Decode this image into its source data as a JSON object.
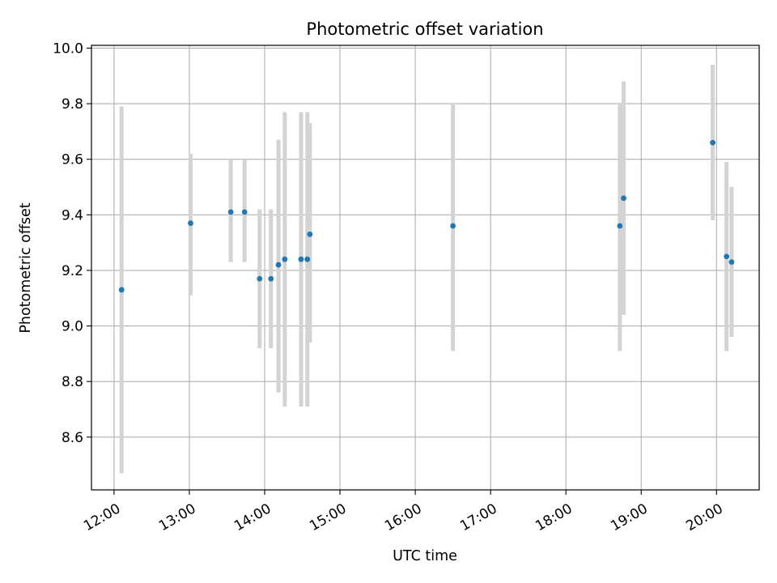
{
  "chart_data": {
    "type": "scatter",
    "title": "Photometric offset variation",
    "xlabel": "UTC time",
    "ylabel": "Photometric offset",
    "x_unit": "hours UTC",
    "xlim": [
      "11:42",
      "20:34"
    ],
    "ylim": [
      8.41,
      10.01
    ],
    "x_ticks": [
      {
        "value": "12:00",
        "label": "12:00"
      },
      {
        "value": "13:00",
        "label": "13:00"
      },
      {
        "value": "14:00",
        "label": "14:00"
      },
      {
        "value": "15:00",
        "label": "15:00"
      },
      {
        "value": "16:00",
        "label": "16:00"
      },
      {
        "value": "17:00",
        "label": "17:00"
      },
      {
        "value": "18:00",
        "label": "18:00"
      },
      {
        "value": "19:00",
        "label": "19:00"
      },
      {
        "value": "20:00",
        "label": "20:00"
      }
    ],
    "y_ticks": [
      {
        "value": 8.6,
        "label": "8.6"
      },
      {
        "value": 8.8,
        "label": "8.8"
      },
      {
        "value": 9.0,
        "label": "9.0"
      },
      {
        "value": 9.2,
        "label": "9.2"
      },
      {
        "value": 9.4,
        "label": "9.4"
      },
      {
        "value": 9.6,
        "label": "9.6"
      },
      {
        "value": 9.8,
        "label": "9.8"
      },
      {
        "value": 10.0,
        "label": "10.0"
      }
    ],
    "grid": true,
    "colors": {
      "marker": "#1f77b4",
      "errorbar": "#d3d3d3",
      "grid": "#b0b0b0"
    },
    "points": [
      {
        "time": "12:06",
        "y": 9.13,
        "y_low": 8.47,
        "y_high": 9.79
      },
      {
        "time": "13:01",
        "y": 9.37,
        "y_low": 9.11,
        "y_high": 9.62
      },
      {
        "time": "13:33",
        "y": 9.41,
        "y_low": 9.23,
        "y_high": 9.6
      },
      {
        "time": "13:44",
        "y": 9.41,
        "y_low": 9.23,
        "y_high": 9.6
      },
      {
        "time": "13:56",
        "y": 9.17,
        "y_low": 8.92,
        "y_high": 9.42
      },
      {
        "time": "14:05",
        "y": 9.17,
        "y_low": 8.92,
        "y_high": 9.42
      },
      {
        "time": "14:11",
        "y": 9.22,
        "y_low": 8.76,
        "y_high": 9.67
      },
      {
        "time": "14:16",
        "y": 9.24,
        "y_low": 8.71,
        "y_high": 9.77
      },
      {
        "time": "14:29",
        "y": 9.24,
        "y_low": 8.71,
        "y_high": 9.77
      },
      {
        "time": "14:34",
        "y": 9.24,
        "y_low": 8.71,
        "y_high": 9.77
      },
      {
        "time": "14:36",
        "y": 9.33,
        "y_low": 8.94,
        "y_high": 9.73
      },
      {
        "time": "16:30",
        "y": 9.36,
        "y_low": 8.91,
        "y_high": 9.8
      },
      {
        "time": "18:43",
        "y": 9.36,
        "y_low": 8.91,
        "y_high": 9.8
      },
      {
        "time": "18:46",
        "y": 9.46,
        "y_low": 9.04,
        "y_high": 9.88
      },
      {
        "time": "19:57",
        "y": 9.66,
        "y_low": 9.38,
        "y_high": 9.94
      },
      {
        "time": "20:08",
        "y": 9.25,
        "y_low": 8.91,
        "y_high": 9.59
      },
      {
        "time": "20:12",
        "y": 9.23,
        "y_low": 8.96,
        "y_high": 9.5
      }
    ]
  }
}
